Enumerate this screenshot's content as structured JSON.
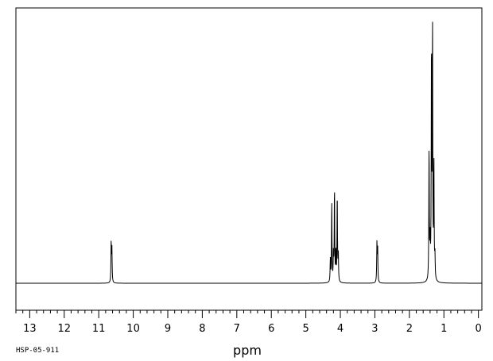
{
  "chart_data": {
    "type": "line",
    "title": "",
    "xlabel": "ppm",
    "ylabel": "",
    "xlim": [
      13.4,
      -0.1
    ],
    "ylim": [
      -0.1,
      1.0
    ],
    "x_reversed": true,
    "grid": false,
    "tick_labels": [
      "13",
      "12",
      "11",
      "10",
      "9",
      "8",
      "7",
      "6",
      "5",
      "4",
      "3",
      "2",
      "1",
      "0"
    ],
    "tick_values": [
      13,
      12,
      11,
      10,
      9,
      8,
      7,
      6,
      5,
      4,
      3,
      2,
      1,
      0
    ],
    "minor_tick_step": 0.2,
    "footer_code": "HSP-05-911",
    "series": [
      {
        "peaks": [
          {
            "ppm": 10.64,
            "intensity": 0.155
          },
          {
            "ppm": 10.62,
            "intensity": 0.14
          },
          {
            "ppm": 4.29,
            "intensity": 0.09
          },
          {
            "ppm": 4.25,
            "intensity": 0.32
          },
          {
            "ppm": 4.2,
            "intensity": 0.11
          },
          {
            "ppm": 4.17,
            "intensity": 0.37
          },
          {
            "ppm": 4.13,
            "intensity": 0.12
          },
          {
            "ppm": 4.09,
            "intensity": 0.35
          },
          {
            "ppm": 4.06,
            "intensity": 0.11
          },
          {
            "ppm": 2.94,
            "intensity": 0.155
          },
          {
            "ppm": 2.92,
            "intensity": 0.14
          },
          {
            "ppm": 1.43,
            "intensity": 0.53
          },
          {
            "ppm": 1.4,
            "intensity": 0.15
          },
          {
            "ppm": 1.36,
            "intensity": 0.92
          },
          {
            "ppm": 1.33,
            "intensity": 1.0
          },
          {
            "ppm": 1.29,
            "intensity": 0.47
          },
          {
            "ppm": 1.26,
            "intensity": 0.09
          }
        ]
      }
    ]
  }
}
